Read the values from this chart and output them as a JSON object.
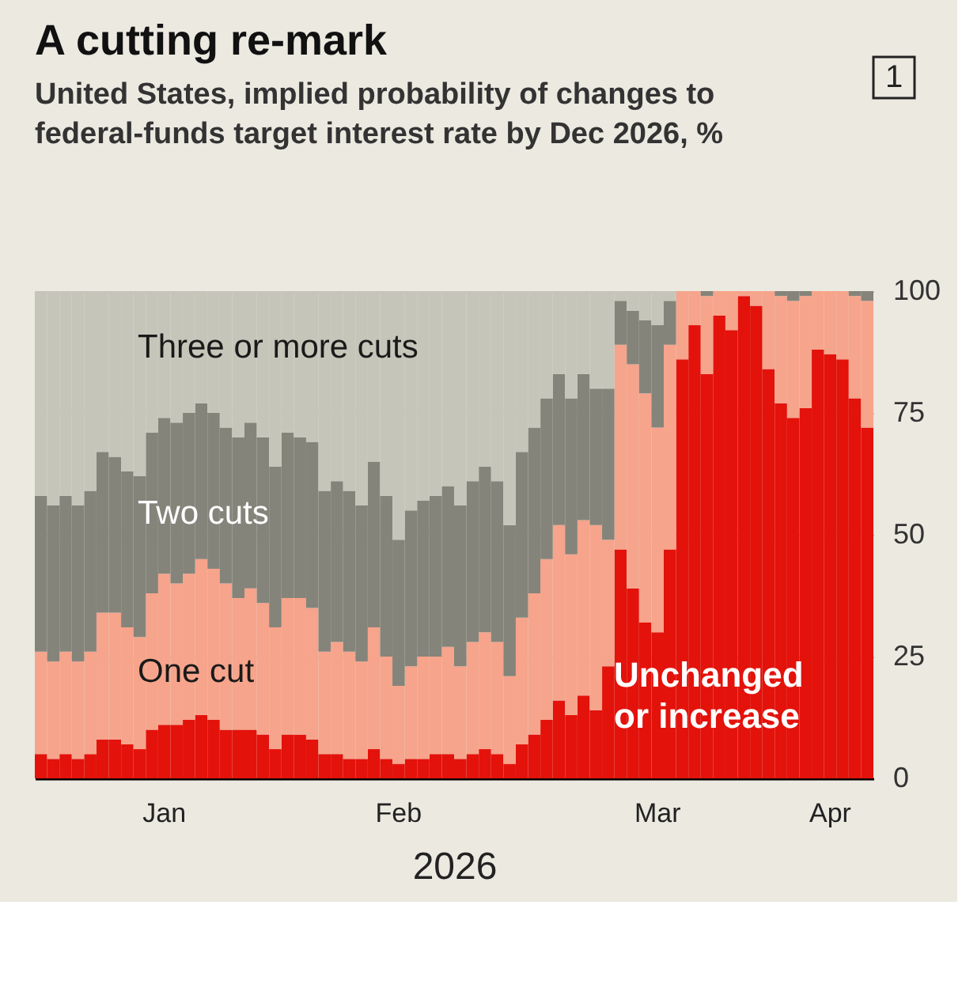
{
  "chart_data": {
    "type": "bar",
    "stacked": true,
    "title": "A cutting re-mark",
    "subtitle": "United States, implied probability of changes to federal-funds target interest rate by Dec 2026, %",
    "xlabel": "2026",
    "categories": [
      null,
      null,
      null,
      null,
      null,
      null,
      null,
      null,
      null,
      null,
      "Jan",
      null,
      null,
      null,
      null,
      null,
      null,
      null,
      null,
      null,
      null,
      null,
      null,
      null,
      null,
      null,
      null,
      null,
      null,
      "Feb",
      null,
      null,
      null,
      null,
      null,
      null,
      null,
      null,
      null,
      null,
      null,
      null,
      null,
      null,
      null,
      null,
      null,
      null,
      null,
      null,
      "Mar",
      null,
      null,
      null,
      null,
      null,
      null,
      null,
      null,
      null,
      null,
      null,
      null,
      null,
      "Apr",
      null,
      null,
      null
    ],
    "series": [
      {
        "name": "Unchanged or increase",
        "color": "#e3120b",
        "values": [
          5,
          4,
          5,
          4,
          5,
          8,
          8,
          7,
          6,
          10,
          11,
          11,
          12,
          13,
          12,
          10,
          10,
          10,
          9,
          6,
          9,
          9,
          8,
          5,
          5,
          4,
          4,
          6,
          4,
          3,
          4,
          4,
          5,
          5,
          4,
          5,
          6,
          5,
          3,
          7,
          9,
          12,
          16,
          13,
          17,
          14,
          23,
          47,
          39,
          32,
          30,
          47,
          86,
          93,
          83,
          95,
          92,
          99,
          97,
          84,
          77,
          74,
          76,
          88,
          87,
          86,
          78,
          72
        ]
      },
      {
        "name": "One cut",
        "color": "#f6a48b",
        "values": [
          21,
          20,
          21,
          20,
          21,
          26,
          26,
          24,
          23,
          28,
          31,
          29,
          30,
          32,
          31,
          30,
          27,
          29,
          27,
          25,
          28,
          28,
          27,
          21,
          23,
          22,
          20,
          25,
          21,
          16,
          19,
          21,
          20,
          22,
          19,
          23,
          24,
          23,
          18,
          26,
          29,
          33,
          36,
          33,
          36,
          38,
          26,
          42,
          46,
          47,
          42,
          42,
          14,
          7,
          16,
          5,
          8,
          1,
          3,
          16,
          22,
          24,
          23,
          12,
          13,
          14,
          21,
          26
        ]
      },
      {
        "name": "Two cuts",
        "color": "#85847b",
        "values": [
          32,
          32,
          32,
          32,
          33,
          33,
          32,
          32,
          33,
          33,
          32,
          33,
          33,
          32,
          32,
          32,
          33,
          34,
          34,
          33,
          34,
          33,
          34,
          33,
          33,
          33,
          32,
          34,
          33,
          30,
          32,
          32,
          33,
          33,
          33,
          33,
          34,
          33,
          31,
          34,
          34,
          33,
          31,
          32,
          30,
          28,
          31,
          9,
          11,
          15,
          21,
          9,
          0,
          0,
          1,
          0,
          0,
          0,
          0,
          0,
          1,
          2,
          1,
          0,
          0,
          0,
          1,
          2
        ]
      },
      {
        "name": "Three or more cuts",
        "color": "#c6c5b9",
        "values": [
          42,
          44,
          42,
          44,
          41,
          33,
          34,
          37,
          38,
          29,
          26,
          27,
          25,
          23,
          25,
          28,
          30,
          27,
          30,
          36,
          29,
          30,
          31,
          41,
          39,
          41,
          44,
          35,
          42,
          51,
          45,
          43,
          42,
          40,
          44,
          39,
          36,
          39,
          48,
          33,
          28,
          22,
          17,
          22,
          17,
          20,
          20,
          2,
          4,
          6,
          7,
          2,
          0,
          0,
          0,
          0,
          0,
          0,
          0,
          0,
          0,
          0,
          0,
          0,
          0,
          0,
          0,
          0
        ]
      }
    ],
    "ylim": [
      0,
      100
    ],
    "yticks": [
      0,
      25,
      50,
      75,
      100
    ],
    "grid": "y",
    "legend": false,
    "annotations": [
      "1"
    ]
  }
}
